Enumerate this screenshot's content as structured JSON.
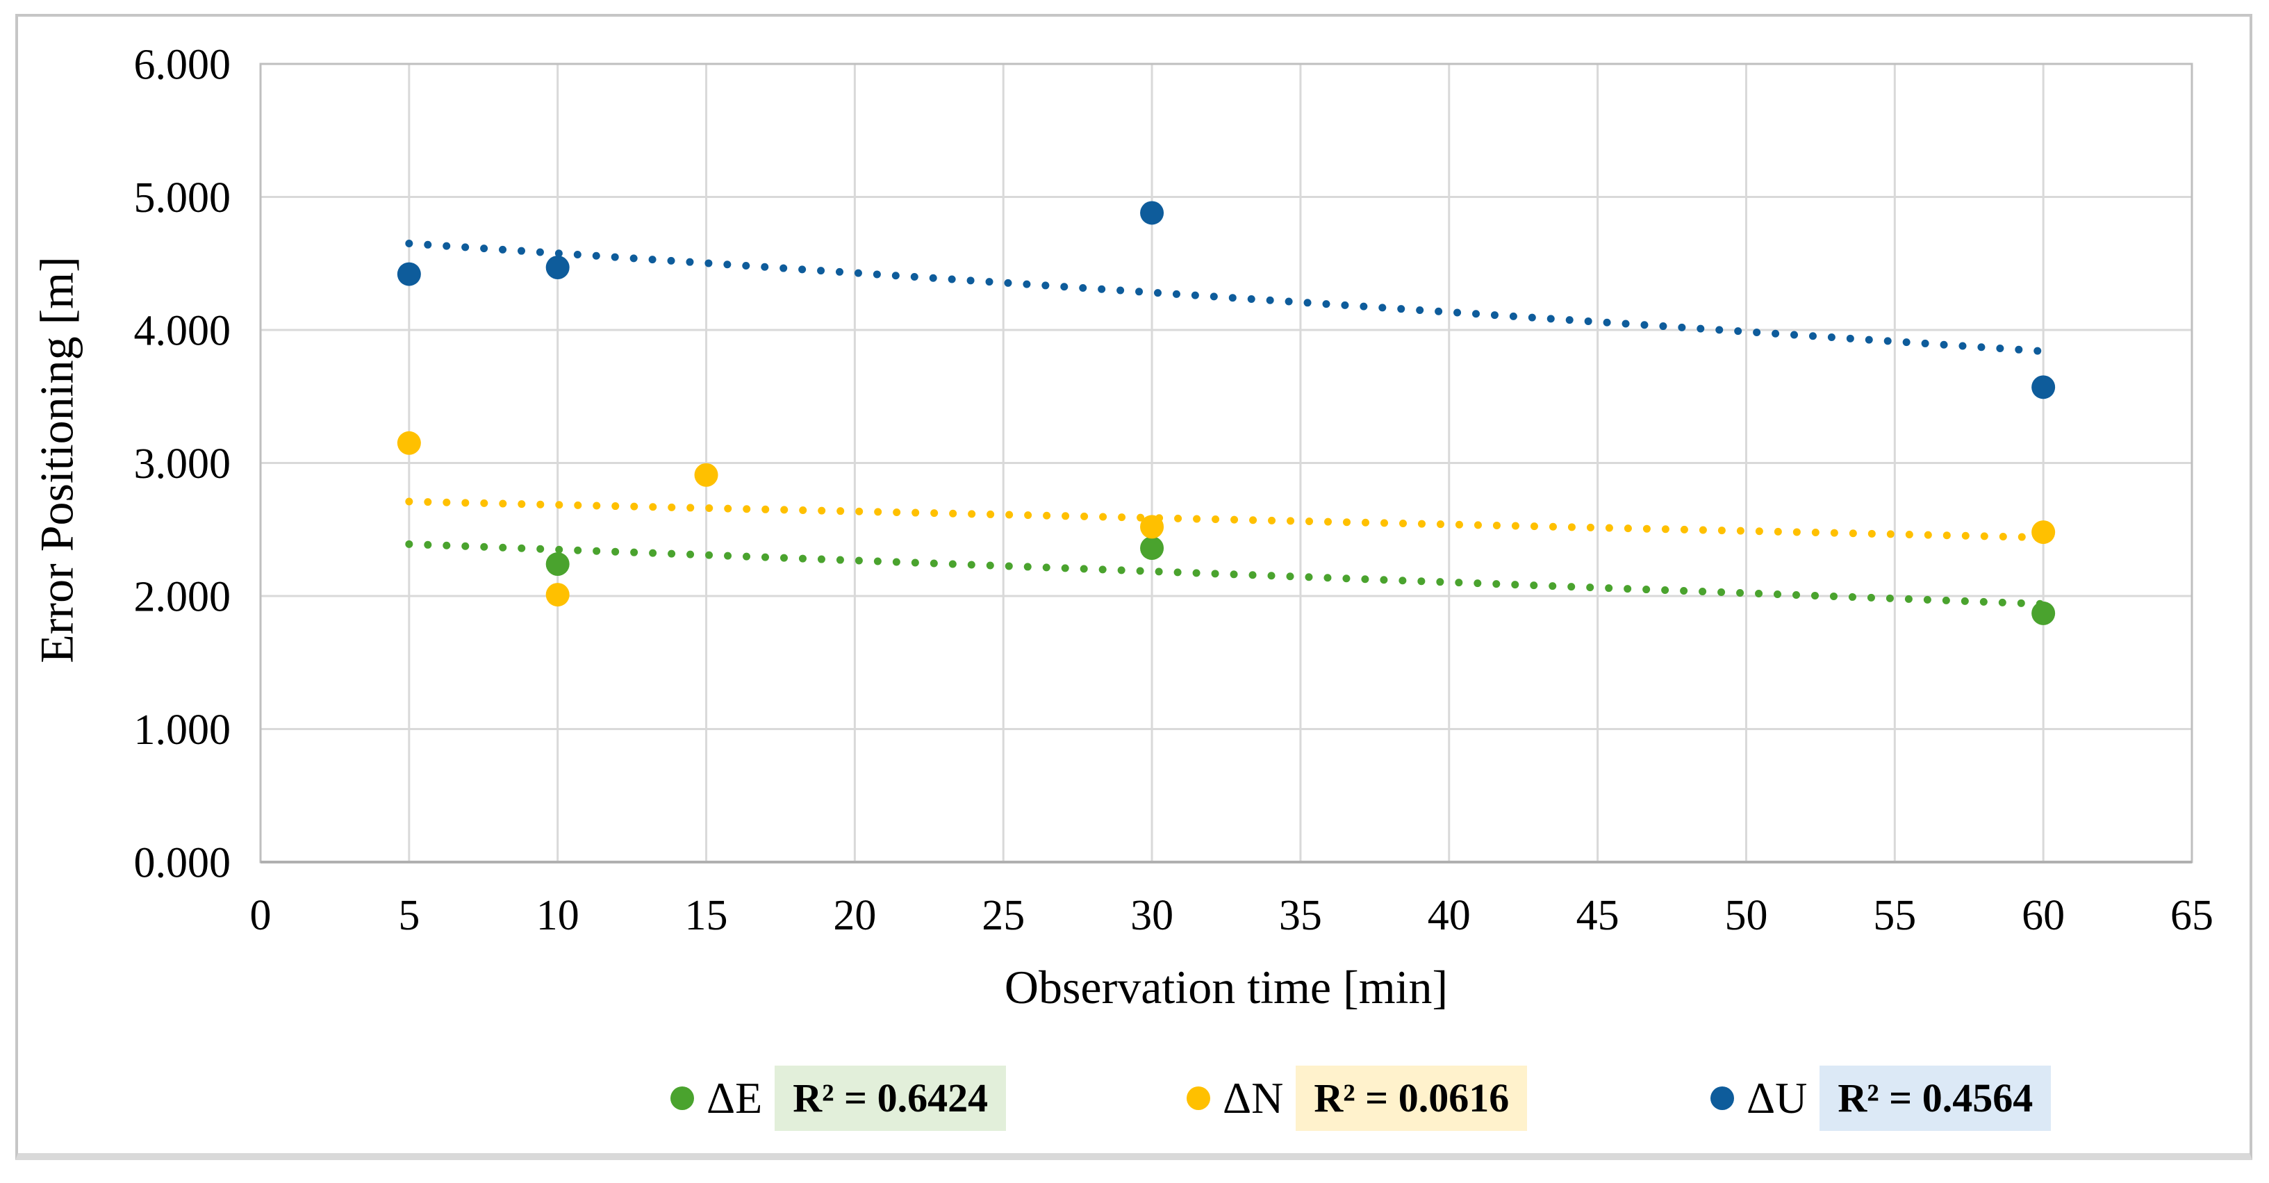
{
  "figure": {
    "background": "#ffffff",
    "border_color": "#c6c6c6"
  },
  "chart_data": {
    "type": "scatter",
    "title": "",
    "xlabel": "Observation time [min]",
    "ylabel": "Error Positioning [m]",
    "xlim": [
      0,
      65
    ],
    "ylim": [
      0,
      6
    ],
    "x_ticks": [
      0,
      5,
      10,
      15,
      20,
      25,
      30,
      35,
      40,
      45,
      50,
      55,
      60,
      65
    ],
    "x_tick_labels": [
      "0",
      "5",
      "10",
      "15",
      "20",
      "25",
      "30",
      "35",
      "40",
      "45",
      "50",
      "55",
      "60",
      "65"
    ],
    "y_ticks": [
      0,
      1,
      2,
      3,
      4,
      5,
      6
    ],
    "y_tick_labels": [
      "0.000",
      "1.000",
      "2.000",
      "3.000",
      "4.000",
      "5.000",
      "6.000"
    ],
    "grid": true,
    "grid_color": "#d9d9d9",
    "frame_color": "#bfbfbf",
    "legend_position": "bottom",
    "series": [
      {
        "name": "ΔE",
        "color": "#4aa32e",
        "r2_label": "R² = 0.6424",
        "r2_bg": "#e2efda",
        "marker": "circle",
        "points": [
          [
            10,
            2.24
          ],
          [
            30,
            2.36
          ],
          [
            60,
            1.87
          ]
        ],
        "trendline": {
          "style": "dotted",
          "x1": 5,
          "y1": 2.39,
          "x2": 60,
          "y2": 1.94
        }
      },
      {
        "name": "ΔN",
        "color": "#ffc000",
        "r2_label": "R² = 0.0616",
        "r2_bg": "#fff2cc",
        "marker": "circle",
        "points": [
          [
            5,
            3.15
          ],
          [
            10,
            2.01
          ],
          [
            15,
            2.91
          ],
          [
            30,
            2.52
          ],
          [
            60,
            2.48
          ]
        ],
        "trendline": {
          "style": "dotted",
          "x1": 5,
          "y1": 2.71,
          "x2": 60,
          "y2": 2.44
        }
      },
      {
        "name": "ΔU",
        "color": "#0e5c9b",
        "r2_label": "R² = 0.4564",
        "r2_bg": "#dce9f6",
        "marker": "circle",
        "points": [
          [
            5,
            4.42
          ],
          [
            10,
            4.47
          ],
          [
            30,
            4.88
          ],
          [
            60,
            3.57
          ]
        ],
        "trendline": {
          "style": "dotted",
          "x1": 5,
          "y1": 4.65,
          "x2": 60,
          "y2": 3.84
        }
      }
    ]
  }
}
